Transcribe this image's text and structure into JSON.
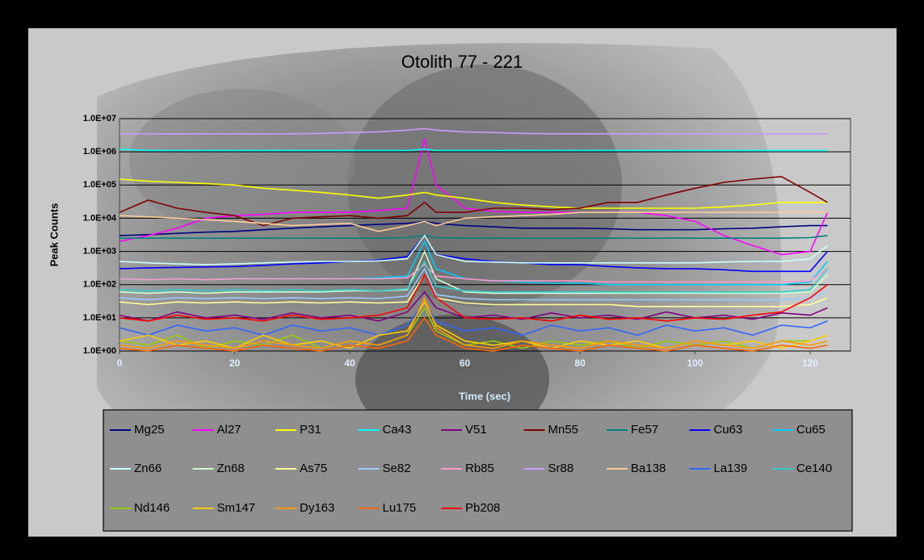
{
  "chart_data": {
    "type": "line",
    "title": "Otolith 77 - 221",
    "x_label": "Time (sec)",
    "y_label": "Peak Counts",
    "log_y": true,
    "grid": true,
    "xlim": [
      0,
      127
    ],
    "xticks": [
      0,
      20,
      40,
      60,
      80,
      100,
      120
    ],
    "ylim": [
      1,
      10000000
    ],
    "yticks": [
      {
        "value": 1,
        "label": "1.0E+00"
      },
      {
        "value": 10,
        "label": "1.0E+01"
      },
      {
        "value": 100,
        "label": "1.0E+02"
      },
      {
        "value": 1000,
        "label": "1.0E+03"
      },
      {
        "value": 10000,
        "label": "1.0E+04"
      },
      {
        "value": 100000,
        "label": "1.0E+05"
      },
      {
        "value": 1000000,
        "label": "1.0E+06"
      },
      {
        "value": 10000000,
        "label": "1.0E+07"
      }
    ],
    "x": [
      0,
      5,
      10,
      15,
      20,
      25,
      30,
      35,
      40,
      45,
      50,
      53,
      55,
      60,
      65,
      70,
      75,
      80,
      85,
      90,
      95,
      100,
      105,
      110,
      115,
      120,
      123
    ],
    "series": [
      {
        "name": "Mg25",
        "color": "#000080",
        "values": [
          3000,
          3200,
          3500,
          3800,
          4000,
          4500,
          5000,
          5500,
          6000,
          6500,
          7000,
          8000,
          7000,
          6000,
          5500,
          5000,
          5000,
          5000,
          4800,
          4500,
          4500,
          4500,
          4800,
          5000,
          5500,
          6000,
          6000
        ]
      },
      {
        "name": "Al27",
        "color": "#ff00ff",
        "values": [
          2000,
          3000,
          5000,
          10000,
          12000,
          13000,
          15000,
          15000,
          15000,
          17000,
          20000,
          2500000,
          100000,
          20000,
          16000,
          15000,
          15000,
          15000,
          15000,
          15000,
          12000,
          8000,
          3000,
          1500,
          800,
          1000,
          15000
        ]
      },
      {
        "name": "P31",
        "color": "#ffff00",
        "values": [
          150000,
          130000,
          120000,
          110000,
          100000,
          80000,
          70000,
          60000,
          50000,
          40000,
          50000,
          60000,
          50000,
          40000,
          30000,
          25000,
          22000,
          20000,
          20000,
          20000,
          20000,
          20000,
          22000,
          25000,
          30000,
          30000,
          30000
        ]
      },
      {
        "name": "Ca43",
        "color": "#00ffff",
        "values": [
          1200000,
          1100000,
          1100000,
          1100000,
          1100000,
          1100000,
          1100000,
          1100000,
          1100000,
          1100000,
          1100000,
          1200000,
          1100000,
          1100000,
          1100000,
          1100000,
          1100000,
          1100000,
          1100000,
          1100000,
          1100000,
          1100000,
          1100000,
          1100000,
          1100000,
          1100000,
          1100000
        ]
      },
      {
        "name": "V51",
        "color": "#800080",
        "values": [
          12,
          8,
          15,
          10,
          12,
          9,
          14,
          10,
          12,
          8,
          15,
          60,
          20,
          10,
          12,
          9,
          14,
          10,
          12,
          9,
          15,
          10,
          12,
          9,
          14,
          12,
          20
        ]
      },
      {
        "name": "Mn55",
        "color": "#800000",
        "values": [
          15000,
          35000,
          20000,
          15000,
          12000,
          6000,
          10000,
          11000,
          12000,
          10000,
          12000,
          30000,
          15000,
          15000,
          20000,
          20000,
          18000,
          20000,
          30000,
          30000,
          50000,
          80000,
          120000,
          150000,
          180000,
          60000,
          30000
        ]
      },
      {
        "name": "Fe57",
        "color": "#008080",
        "values": [
          2500,
          2500,
          2500,
          2500,
          2500,
          2500,
          2500,
          2500,
          2500,
          2500,
          2600,
          3000,
          2600,
          2500,
          2500,
          2500,
          2500,
          2500,
          2500,
          2500,
          2500,
          2500,
          2500,
          2500,
          2500,
          2600,
          3000
        ]
      },
      {
        "name": "Cu63",
        "color": "#0000ff",
        "values": [
          300,
          320,
          330,
          340,
          350,
          380,
          420,
          450,
          500,
          550,
          700,
          3000,
          800,
          600,
          500,
          450,
          400,
          400,
          350,
          320,
          300,
          300,
          280,
          250,
          250,
          250,
          1000
        ]
      },
      {
        "name": "Cu65",
        "color": "#00ccff",
        "values": [
          150,
          140,
          150,
          140,
          150,
          150,
          150,
          150,
          150,
          160,
          180,
          2000,
          300,
          150,
          130,
          120,
          110,
          110,
          100,
          100,
          100,
          100,
          100,
          100,
          100,
          120,
          500
        ]
      },
      {
        "name": "Zn66",
        "color": "#ccffff",
        "values": [
          500,
          450,
          420,
          400,
          420,
          450,
          480,
          500,
          500,
          520,
          600,
          3000,
          800,
          500,
          480,
          450,
          450,
          450,
          450,
          450,
          450,
          450,
          480,
          500,
          500,
          600,
          1500
        ]
      },
      {
        "name": "Zn68",
        "color": "#ccffcc",
        "values": [
          60,
          55,
          60,
          55,
          60,
          60,
          60,
          60,
          65,
          65,
          70,
          1000,
          150,
          60,
          55,
          55,
          55,
          55,
          55,
          55,
          55,
          55,
          55,
          55,
          55,
          60,
          200
        ]
      },
      {
        "name": "As75",
        "color": "#ffff99",
        "values": [
          30,
          25,
          30,
          28,
          30,
          28,
          30,
          28,
          30,
          28,
          30,
          200,
          40,
          28,
          25,
          25,
          25,
          25,
          25,
          22,
          22,
          22,
          22,
          22,
          22,
          25,
          40
        ]
      },
      {
        "name": "Se82",
        "color": "#99ccff",
        "values": [
          40,
          35,
          40,
          38,
          40,
          38,
          40,
          38,
          40,
          38,
          45,
          300,
          50,
          38,
          35,
          35,
          35,
          35,
          35,
          35,
          35,
          35,
          35,
          35,
          35,
          40,
          60
        ]
      },
      {
        "name": "Rb85",
        "color": "#ff99cc",
        "values": [
          150,
          140,
          150,
          140,
          150,
          150,
          150,
          150,
          150,
          150,
          160,
          400,
          180,
          150,
          130,
          130,
          130,
          130,
          120,
          120,
          120,
          120,
          120,
          120,
          120,
          130,
          300
        ]
      },
      {
        "name": "Sr88",
        "color": "#cc99ff",
        "values": [
          3500000,
          3500000,
          3500000,
          3500000,
          3500000,
          3500000,
          3500000,
          3600000,
          3800000,
          4000000,
          4500000,
          5000000,
          4500000,
          4000000,
          3800000,
          3600000,
          3500000,
          3500000,
          3500000,
          3500000,
          3500000,
          3500000,
          3500000,
          3500000,
          3500000,
          3500000,
          3500000
        ]
      },
      {
        "name": "Ba138",
        "color": "#ffcc99",
        "values": [
          12000,
          11000,
          10000,
          9000,
          8000,
          7000,
          6000,
          6500,
          7000,
          4000,
          6000,
          8000,
          6000,
          10000,
          11000,
          12000,
          13000,
          15000,
          15000,
          15000,
          15000,
          15000,
          15000,
          15000,
          15000,
          15000,
          15000
        ]
      },
      {
        "name": "La139",
        "color": "#3366ff",
        "values": [
          5,
          3,
          6,
          4,
          5,
          3,
          6,
          4,
          5,
          3,
          6,
          30,
          8,
          4,
          5,
          3,
          6,
          4,
          5,
          3,
          6,
          4,
          5,
          3,
          6,
          5,
          8
        ]
      },
      {
        "name": "Ce140",
        "color": "#33cccc",
        "values": [
          70,
          65,
          70,
          65,
          70,
          65,
          70,
          65,
          70,
          65,
          75,
          500,
          90,
          65,
          60,
          60,
          60,
          60,
          60,
          60,
          60,
          60,
          60,
          60,
          60,
          70,
          300
        ]
      },
      {
        "name": "Nd146",
        "color": "#99cc00",
        "values": [
          2,
          1.5,
          3,
          1.2,
          2,
          1.5,
          3,
          1.2,
          2,
          1.5,
          3,
          20,
          4,
          1.5,
          2,
          1.2,
          2,
          1.5,
          2,
          1.2,
          2,
          1.5,
          2,
          1.2,
          2,
          2,
          3
        ]
      },
      {
        "name": "Sm147",
        "color": "#ffcc00",
        "values": [
          2,
          3,
          1.5,
          2,
          1.2,
          3,
          1.5,
          2,
          1.2,
          3,
          4,
          30,
          6,
          2,
          1.5,
          2,
          1.2,
          2,
          1.5,
          2,
          1.2,
          2,
          1.5,
          2,
          1.2,
          2,
          3
        ]
      },
      {
        "name": "Dy163",
        "color": "#ff9900",
        "values": [
          1.5,
          1.2,
          2,
          1.5,
          1.2,
          2,
          1.5,
          1.2,
          2,
          1.5,
          3,
          40,
          5,
          1.5,
          1.2,
          2,
          1.5,
          1.2,
          2,
          1.5,
          1.2,
          2,
          1.5,
          1.2,
          2,
          1.5,
          2
        ]
      },
      {
        "name": "Lu175",
        "color": "#ff6600",
        "values": [
          1.2,
          1,
          1.5,
          1.2,
          1,
          1.5,
          1.2,
          1,
          1.5,
          1.2,
          2,
          10,
          3,
          1.2,
          1,
          1.5,
          1.2,
          1,
          1.5,
          1.2,
          1,
          1.5,
          1.2,
          1,
          1.5,
          1.2,
          1.5
        ]
      },
      {
        "name": "Pb208",
        "color": "#ff0000",
        "values": [
          10,
          8,
          12,
          9,
          10,
          8,
          12,
          9,
          10,
          12,
          20,
          200,
          40,
          10,
          9,
          10,
          8,
          12,
          9,
          10,
          8,
          10,
          9,
          12,
          15,
          40,
          100
        ]
      }
    ]
  }
}
